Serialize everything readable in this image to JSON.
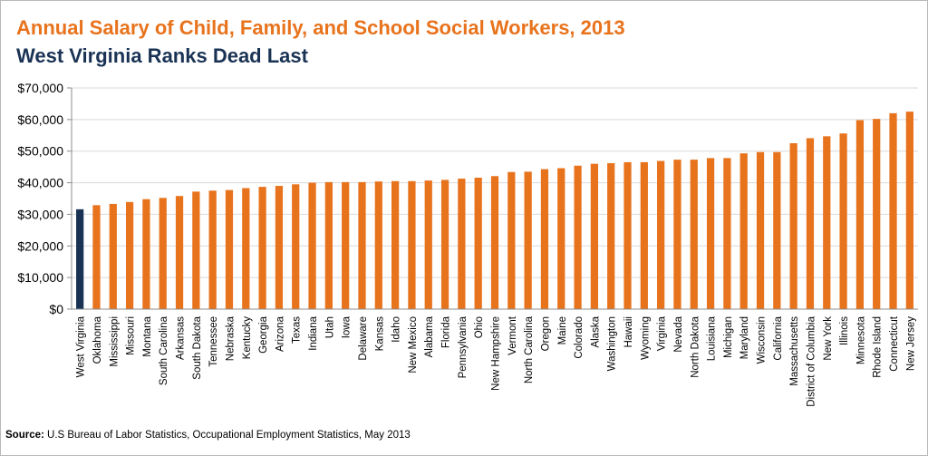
{
  "chart_data": {
    "type": "bar",
    "title": "Annual Salary of Child, Family, and School Social Workers, 2013",
    "subtitle": "West Virginia Ranks Dead Last",
    "xlabel": "",
    "ylabel": "",
    "ylim": [
      0,
      70000
    ],
    "yticks": [
      0,
      10000,
      20000,
      30000,
      40000,
      50000,
      60000,
      70000
    ],
    "ytick_labels": [
      "$0",
      "$10,000",
      "$20,000",
      "$30,000",
      "$40,000",
      "$50,000",
      "$60,000",
      "$70,000"
    ],
    "grid": true,
    "categories": [
      "West Virginia",
      "Oklahoma",
      "Mississippi",
      "Missouri",
      "Montana",
      "South Carolina",
      "Arkansas",
      "South Dakota",
      "Tennessee",
      "Nebraska",
      "Kentucky",
      "Georgia",
      "Arizona",
      "Texas",
      "Indiana",
      "Utah",
      "Iowa",
      "Delaware",
      "Kansas",
      "Idaho",
      "New Mexico",
      "Alabama",
      "Florida",
      "Pennsylvania",
      "Ohio",
      "New Hampshire",
      "Vermont",
      "North Carolina",
      "Oregon",
      "Maine",
      "Colorado",
      "Alaska",
      "Washington",
      "Hawaii",
      "Wyoming",
      "Virginia",
      "Nevada",
      "North Dakota",
      "Louisiana",
      "Michigan",
      "Maryland",
      "Wisconsin",
      "California",
      "Massachusetts",
      "District of Columbia",
      "New York",
      "Illinois",
      "Minnesota",
      "Rhode Island",
      "Connecticut",
      "New Jersey"
    ],
    "values": [
      31600,
      32900,
      33300,
      33900,
      34800,
      35200,
      35800,
      37200,
      37500,
      37700,
      38300,
      38700,
      39000,
      39500,
      40000,
      40200,
      40200,
      40200,
      40400,
      40500,
      40500,
      40700,
      40900,
      41300,
      41600,
      42100,
      43400,
      43500,
      44300,
      44600,
      45400,
      46000,
      46200,
      46500,
      46500,
      46900,
      47300,
      47300,
      47800,
      47800,
      49300,
      49700,
      49700,
      52500,
      54100,
      54700,
      55600,
      59800,
      60200,
      62000,
      62500
    ],
    "bar_color": "#e8731d",
    "highlight_color": "#1a3355",
    "highlight_category": "West Virginia"
  },
  "source": {
    "label": "Source:",
    "text": " U.S Bureau of Labor Statistics, Occupational Employment Statistics, May 2013"
  }
}
